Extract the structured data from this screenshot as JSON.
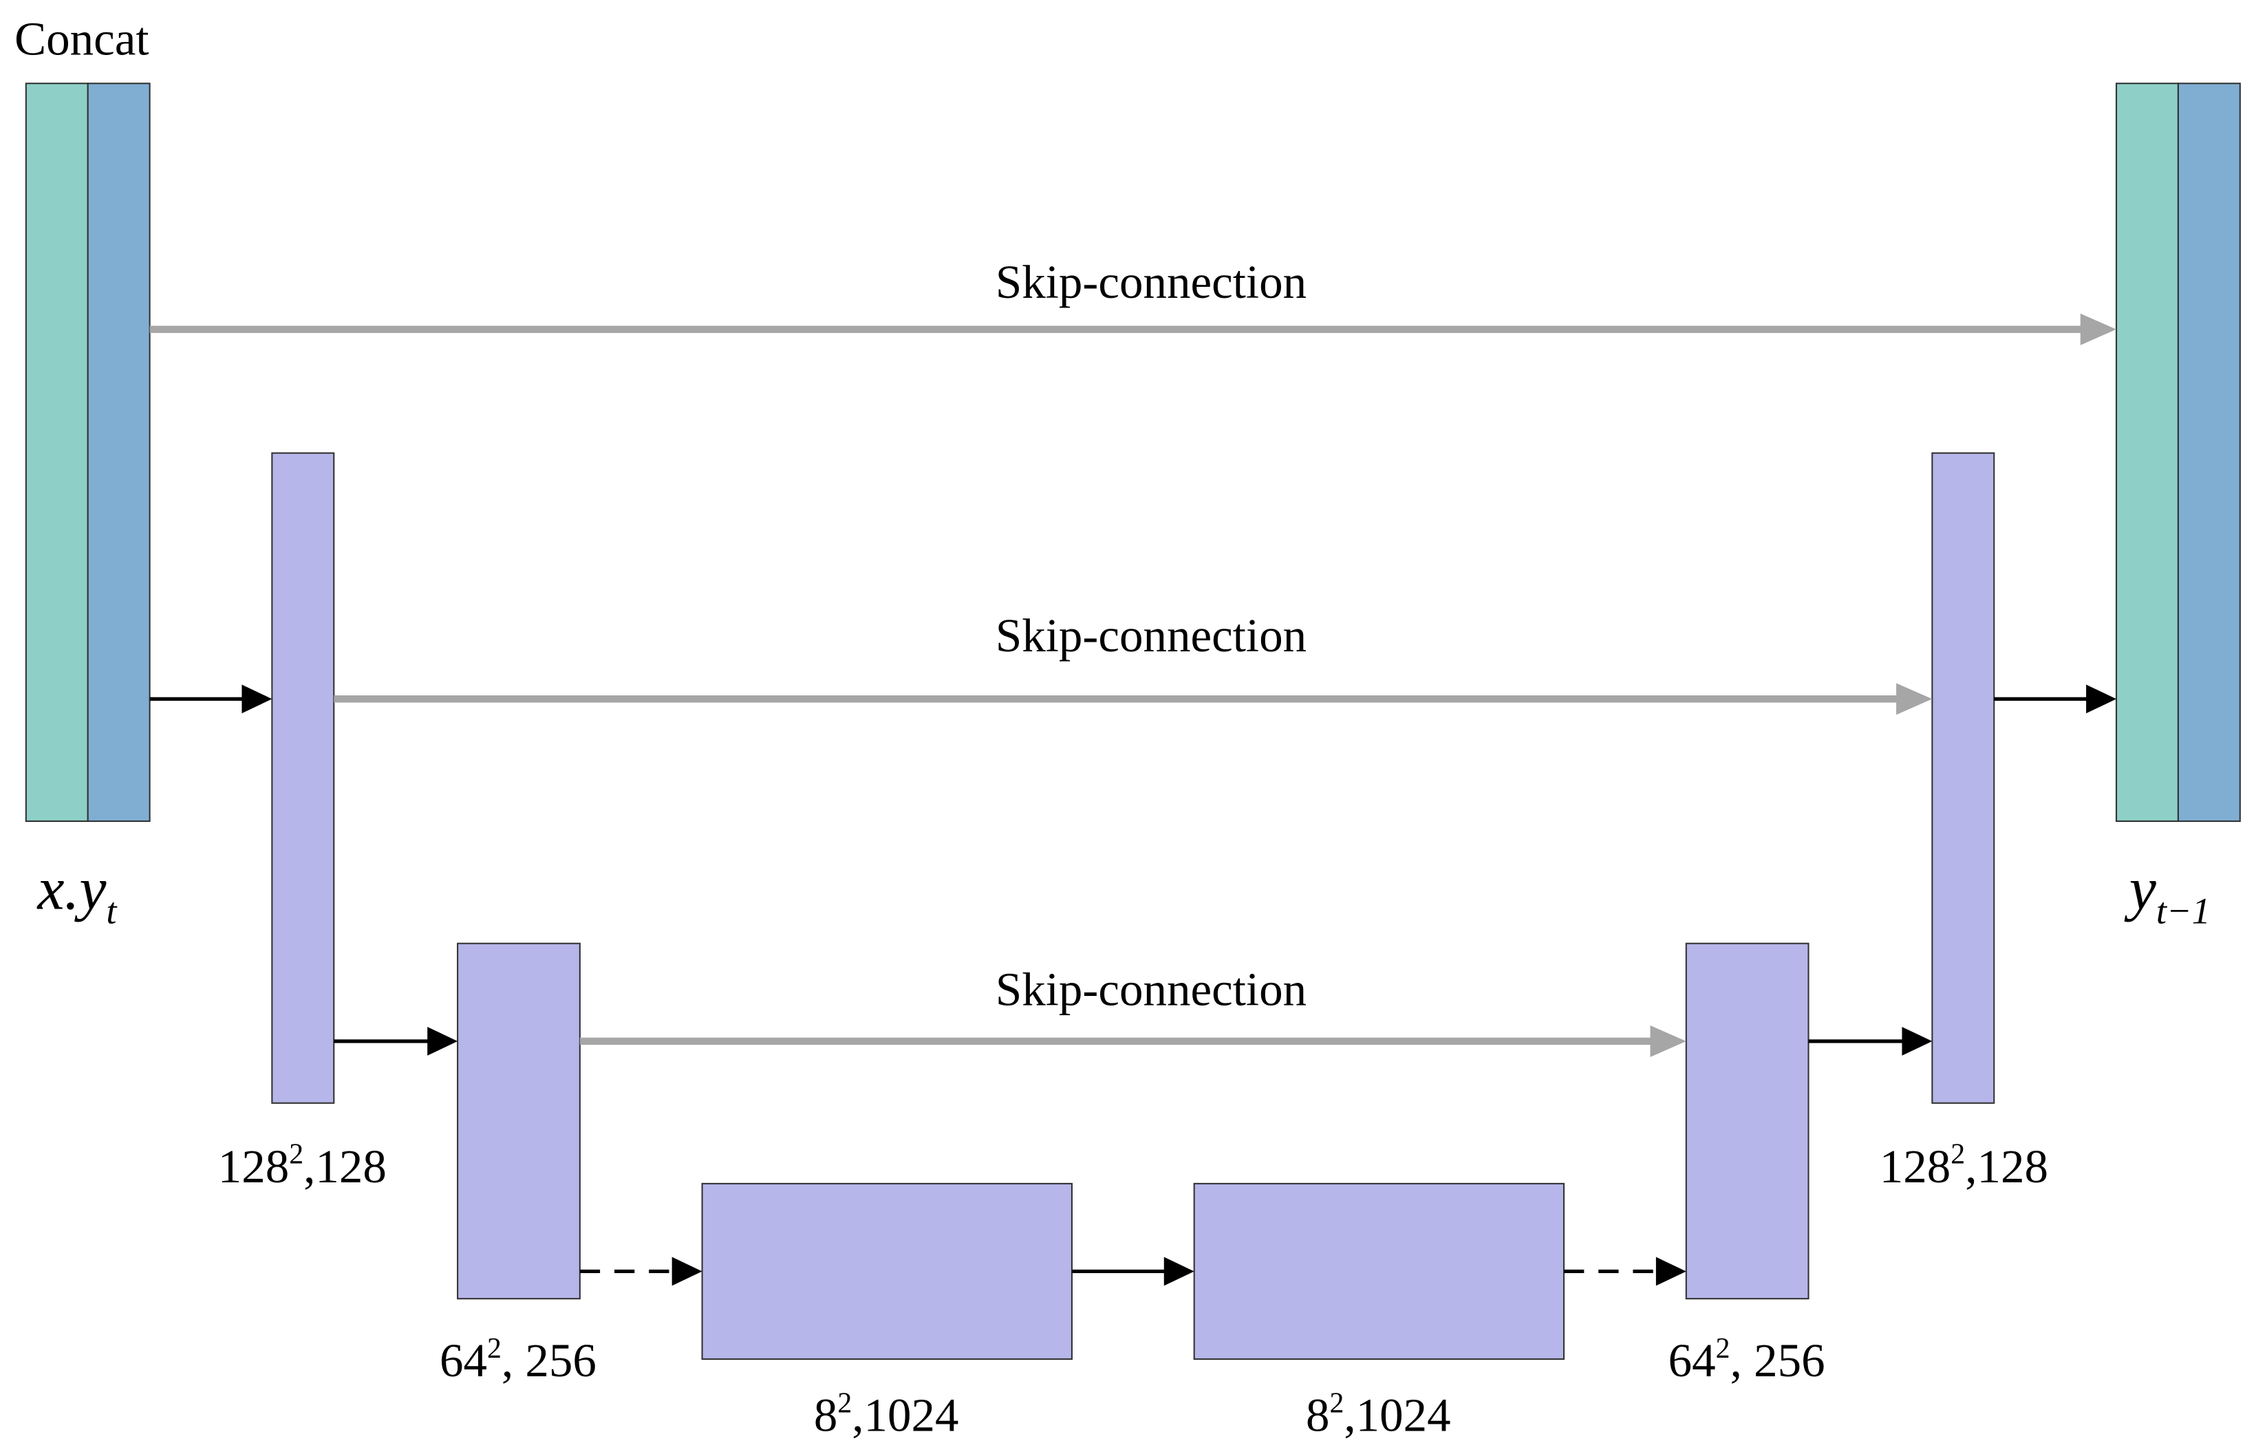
{
  "header": {
    "concat": "Concat"
  },
  "skip_connections": [
    "Skip-connection",
    "Skip-connection",
    "Skip-connection"
  ],
  "input_label": {
    "base": "x.y",
    "sub": "t"
  },
  "output_label": {
    "base": "y",
    "sub": "t−1"
  },
  "block_labels": [
    {
      "base": "128",
      "sup": "2",
      "rest": ",128"
    },
    {
      "base": "64",
      "sup": "2",
      "rest": ", 256"
    },
    {
      "base": "8",
      "sup": "2",
      "rest": ",1024"
    },
    {
      "base": "8",
      "sup": "2",
      "rest": ",1024"
    },
    {
      "base": "64",
      "sup": "2",
      "rest": ", 256"
    },
    {
      "base": "128",
      "sup": "2",
      "rest": ",128"
    }
  ]
}
